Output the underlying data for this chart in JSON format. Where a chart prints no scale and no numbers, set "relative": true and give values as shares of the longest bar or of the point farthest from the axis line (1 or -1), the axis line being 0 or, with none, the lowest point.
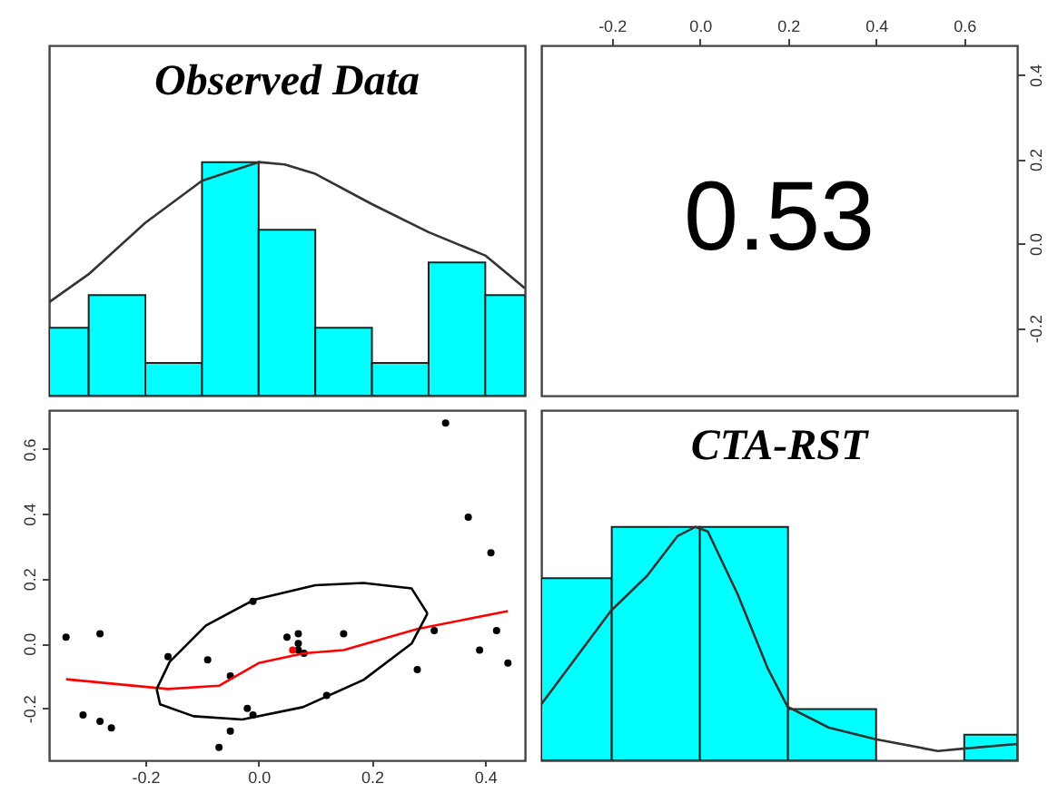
{
  "chart_data": [
    {
      "type": "histogram",
      "title": "Observed Data",
      "relative": true,
      "color": "#00ffff",
      "xlim": [
        -0.37,
        0.47
      ],
      "tick_labels": false,
      "bins": [
        -0.37,
        -0.3,
        -0.2,
        -0.1,
        0,
        0.1,
        0.2,
        0.3,
        0.4,
        0.47
      ],
      "values": [
        0.29,
        0.43,
        0.14,
        1,
        0.71,
        0.29,
        0.14,
        0.57,
        0.43
      ],
      "series": [
        {
          "type": "line",
          "color": "#333333",
          "x": [
            -0.37,
            -0.3,
            -0.2,
            -0.1,
            0,
            0.046,
            0.1,
            0.2,
            0.3,
            0.4,
            0.47
          ],
          "values": [
            0.4,
            0.52,
            0.74,
            0.92,
            1,
            0.99,
            0.95,
            0.82,
            0.7,
            0.6,
            0.46
          ]
        }
      ]
    },
    {
      "type": "scatter",
      "annotations": [
        "0.53"
      ],
      "xlim": [
        -0.36,
        0.72
      ],
      "xticks": [
        -0.2,
        {
          "value": 0,
          "label": "0.0"
        },
        0.2,
        0.4,
        0.6
      ],
      "ylim": [
        -0.36,
        0.47
      ],
      "yticks": [
        -0.2,
        {
          "value": 0,
          "label": "0.0"
        },
        0.2,
        0.4
      ]
    },
    {
      "type": "scatter",
      "xlim": [
        -0.37,
        0.47
      ],
      "ylim": [
        -0.36,
        0.72
      ],
      "xticks": [
        -0.2,
        {
          "value": 0,
          "label": "0.0"
        },
        0.2,
        0.4
      ],
      "yticks": [
        -0.2,
        {
          "value": 0,
          "label": "0.0"
        },
        0.2,
        0.4,
        0.6
      ],
      "series": [
        {
          "color": "#000000",
          "marker": "circle",
          "x": [
            -0.34,
            -0.31,
            -0.28,
            -0.28,
            -0.26,
            -0.16,
            -0.09,
            -0.05,
            -0.05,
            -0.07,
            -0.02,
            -0.01,
            -0.01,
            0.05,
            0.07,
            0.07,
            0.07,
            0.08,
            0.15,
            0.12,
            0.28,
            0.31,
            0.33,
            0.37,
            0.41,
            0.39,
            0.42,
            0.44
          ],
          "values": [
            0.02,
            -0.22,
            0.03,
            -0.24,
            -0.26,
            -0.04,
            -0.05,
            -0.1,
            -0.27,
            -0.32,
            -0.2,
            0.13,
            -0.22,
            0.02,
            0.03,
            0,
            -0.02,
            -0.03,
            0.03,
            -0.16,
            -0.08,
            0.04,
            0.68,
            0.39,
            0.28,
            -0.02,
            0.04,
            -0.06
          ]
        },
        {
          "color": "#ff0000",
          "marker": "circle",
          "x": [
            0.06
          ],
          "values": [
            -0.02
          ]
        },
        {
          "type": "line",
          "color": "#ff0000",
          "x": [
            -0.34,
            -0.16,
            -0.07,
            0,
            0.08,
            0.15,
            0.28,
            0.44
          ],
          "values": [
            -0.11,
            -0.14,
            -0.13,
            -0.06,
            -0.03,
            -0.02,
            0.045,
            0.1
          ]
        },
        {
          "type": "line",
          "color": "#000000",
          "x": [
            -0.18,
            -0.157,
            -0.093,
            -0.008,
            0.1,
            0.185,
            0.27,
            0.298
          ],
          "values": [
            -0.14,
            -0.056,
            0.056,
            0.135,
            0.18,
            0.187,
            0.17,
            0.093
          ]
        },
        {
          "type": "line",
          "color": "#000000",
          "x": [
            -0.18,
            -0.174,
            -0.115,
            -0.029,
            0.078,
            0.185,
            0.27,
            0.298
          ],
          "values": [
            -0.14,
            -0.187,
            -0.224,
            -0.234,
            -0.196,
            -0.112,
            0,
            0.093
          ]
        }
      ]
    },
    {
      "type": "histogram",
      "title": "CTA-RST",
      "relative": true,
      "color": "#00ffff",
      "xlim": [
        -0.36,
        0.72
      ],
      "tick_labels": false,
      "bins": [
        -0.36,
        -0.2,
        0,
        0.2,
        0.4,
        0.6,
        0.72
      ],
      "values": [
        0.78,
        1,
        1,
        0.22,
        0,
        0.11
      ],
      "series": [
        {
          "type": "line",
          "color": "#333333",
          "x": [
            -0.36,
            -0.202,
            -0.12,
            -0.051,
            -0.01,
            0.018,
            0.086,
            0.155,
            0.199,
            0.293,
            0.399,
            0.54,
            0.597,
            0.72
          ],
          "values": [
            0.24,
            0.64,
            0.79,
            0.96,
            1,
            0.98,
            0.71,
            0.39,
            0.23,
            0.14,
            0.09,
            0.04,
            0.05,
            0.07
          ]
        }
      ]
    }
  ]
}
